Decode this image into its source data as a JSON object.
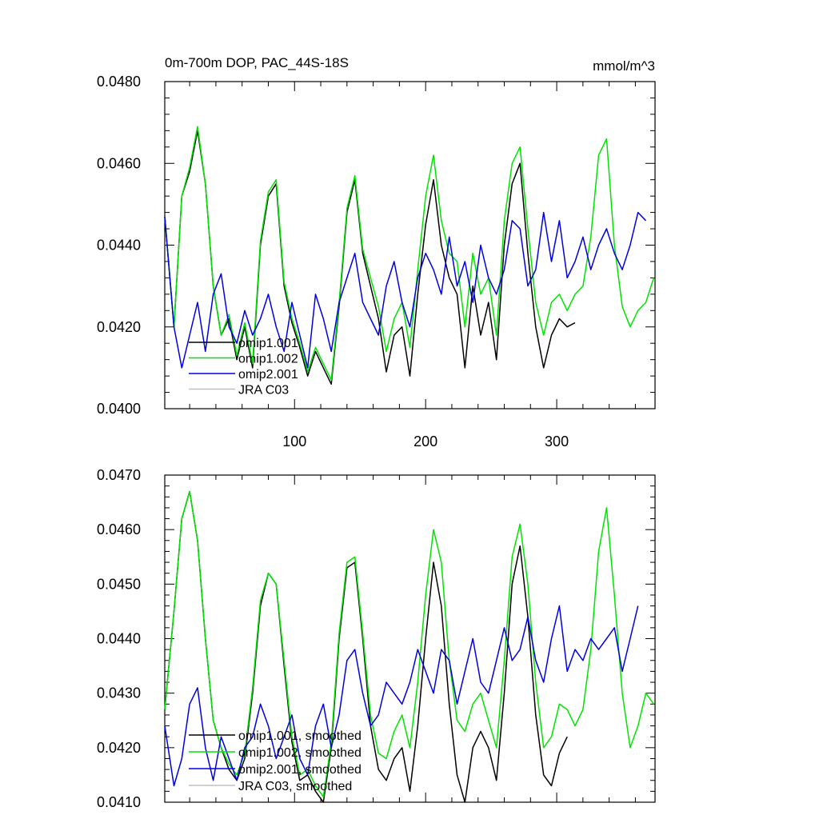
{
  "chart_data": [
    {
      "type": "line",
      "title_left": "0m-700m DOP, PAC_44S-18S",
      "title_right": "mmol/m^3",
      "ylim": [
        0.04,
        0.048
      ],
      "xlim": [
        1,
        375
      ],
      "yticks": [
        0.04,
        0.042,
        0.044,
        0.046,
        0.048
      ],
      "ytick_labels": [
        "0.0400",
        "0.0420",
        "0.0440",
        "0.0460",
        "0.0480"
      ],
      "xticks": [
        100,
        200,
        300
      ],
      "xtick_labels": [
        "100",
        "200",
        "300"
      ],
      "legend_position": "bottom-left",
      "series": [
        {
          "name": "omip1.001",
          "color": "#000000",
          "x": [
            1,
            8,
            14,
            20,
            26,
            32,
            38,
            44,
            50,
            56,
            62,
            68,
            74,
            80,
            86,
            92,
            98,
            104,
            110,
            116,
            122,
            128,
            134,
            140,
            146,
            152,
            158,
            164,
            170,
            176,
            182,
            188,
            194,
            200,
            206,
            212,
            218,
            224,
            230,
            236,
            242,
            248,
            254,
            260,
            266,
            272,
            278,
            284,
            290,
            296,
            302,
            308,
            314
          ],
          "y": [
            0.0447,
            0.042,
            0.0452,
            0.0458,
            0.0468,
            0.0455,
            0.043,
            0.0418,
            0.0422,
            0.0412,
            0.042,
            0.041,
            0.044,
            0.0452,
            0.0455,
            0.043,
            0.0421,
            0.0415,
            0.0408,
            0.0414,
            0.041,
            0.0406,
            0.0425,
            0.0448,
            0.0456,
            0.0438,
            0.043,
            0.0422,
            0.0409,
            0.0418,
            0.042,
            0.0408,
            0.0428,
            0.0445,
            0.0456,
            0.044,
            0.0432,
            0.0428,
            0.041,
            0.043,
            0.0418,
            0.0426,
            0.0412,
            0.044,
            0.0455,
            0.046,
            0.0438,
            0.042,
            0.041,
            0.0418,
            0.0422,
            0.042,
            0.0421
          ]
        },
        {
          "name": "omip1.002",
          "color": "#00e400",
          "x": [
            1,
            8,
            14,
            20,
            26,
            32,
            38,
            44,
            50,
            56,
            62,
            68,
            74,
            80,
            86,
            92,
            98,
            104,
            110,
            116,
            122,
            128,
            134,
            140,
            146,
            152,
            158,
            164,
            170,
            176,
            182,
            188,
            194,
            200,
            206,
            212,
            218,
            224,
            230,
            236,
            242,
            248,
            254,
            260,
            266,
            272,
            278,
            284,
            290,
            296,
            302,
            308,
            314,
            320,
            326,
            332,
            338,
            344,
            350,
            356,
            362,
            368,
            374
          ],
          "y": [
            0.0447,
            0.042,
            0.0452,
            0.0459,
            0.0469,
            0.0455,
            0.043,
            0.0418,
            0.0423,
            0.0413,
            0.0421,
            0.0411,
            0.0441,
            0.0453,
            0.0456,
            0.0431,
            0.0422,
            0.0416,
            0.0409,
            0.0415,
            0.0411,
            0.0407,
            0.0426,
            0.0449,
            0.0457,
            0.0439,
            0.0432,
            0.0425,
            0.0414,
            0.0422,
            0.0426,
            0.0415,
            0.0434,
            0.0452,
            0.0462,
            0.0446,
            0.0438,
            0.0436,
            0.042,
            0.0438,
            0.0428,
            0.0432,
            0.0418,
            0.0446,
            0.046,
            0.0464,
            0.0444,
            0.0426,
            0.0418,
            0.0426,
            0.0428,
            0.0424,
            0.0428,
            0.043,
            0.0442,
            0.0462,
            0.0466,
            0.044,
            0.0425,
            0.042,
            0.0424,
            0.0426,
            0.0432
          ]
        },
        {
          "name": "omip2.001",
          "color": "#0000e0",
          "x": [
            1,
            8,
            14,
            20,
            26,
            32,
            38,
            44,
            50,
            56,
            62,
            68,
            74,
            80,
            86,
            92,
            98,
            104,
            110,
            116,
            122,
            128,
            134,
            140,
            146,
            152,
            158,
            164,
            170,
            176,
            182,
            188,
            194,
            200,
            206,
            212,
            218,
            224,
            230,
            236,
            242,
            248,
            254,
            260,
            266,
            272,
            278,
            284,
            290,
            296,
            302,
            308,
            314,
            320,
            326,
            332,
            338,
            344,
            350,
            356,
            362,
            368
          ],
          "y": [
            0.0447,
            0.042,
            0.041,
            0.0418,
            0.0426,
            0.0414,
            0.0428,
            0.0433,
            0.042,
            0.0416,
            0.0424,
            0.0418,
            0.0422,
            0.0428,
            0.042,
            0.0414,
            0.0426,
            0.0418,
            0.041,
            0.0428,
            0.0422,
            0.0414,
            0.0426,
            0.0432,
            0.0438,
            0.0426,
            0.0422,
            0.0418,
            0.043,
            0.0436,
            0.0426,
            0.042,
            0.0432,
            0.0438,
            0.0434,
            0.0428,
            0.0442,
            0.043,
            0.0436,
            0.0426,
            0.044,
            0.0432,
            0.0428,
            0.0434,
            0.0446,
            0.0444,
            0.043,
            0.0434,
            0.0448,
            0.0436,
            0.0446,
            0.0432,
            0.0436,
            0.0442,
            0.0434,
            0.044,
            0.0444,
            0.0438,
            0.0434,
            0.044,
            0.0448,
            0.0446
          ]
        },
        {
          "name": "JRA C03",
          "color": "#c0c0c0",
          "x": [],
          "y": []
        }
      ]
    },
    {
      "type": "line",
      "ylim": [
        0.041,
        0.047
      ],
      "xlim": [
        1,
        375
      ],
      "yticks": [
        0.041,
        0.042,
        0.043,
        0.044,
        0.045,
        0.046,
        0.047
      ],
      "ytick_labels": [
        "0.0410",
        "0.0420",
        "0.0430",
        "0.0440",
        "0.0450",
        "0.0460",
        "0.0470"
      ],
      "legend_position": "bottom-left",
      "series": [
        {
          "name": "omip1.001, smoothed",
          "color": "#000000",
          "x": [
            1,
            8,
            14,
            20,
            26,
            32,
            38,
            44,
            50,
            56,
            62,
            68,
            74,
            80,
            86,
            92,
            98,
            104,
            110,
            116,
            122,
            128,
            134,
            140,
            146,
            152,
            158,
            164,
            170,
            176,
            182,
            188,
            194,
            200,
            206,
            212,
            218,
            224,
            230,
            236,
            242,
            248,
            254,
            260,
            266,
            272,
            278,
            284,
            290,
            296,
            302,
            308
          ],
          "y": [
            0.0427,
            0.0445,
            0.0462,
            0.0467,
            0.0458,
            0.044,
            0.0425,
            0.042,
            0.0416,
            0.0414,
            0.0418,
            0.043,
            0.0446,
            0.0452,
            0.045,
            0.0435,
            0.0421,
            0.0414,
            0.0415,
            0.0412,
            0.041,
            0.042,
            0.044,
            0.0453,
            0.0454,
            0.044,
            0.0424,
            0.0416,
            0.0414,
            0.0418,
            0.042,
            0.0412,
            0.0424,
            0.044,
            0.0454,
            0.0446,
            0.0428,
            0.0415,
            0.041,
            0.042,
            0.0423,
            0.042,
            0.0414,
            0.043,
            0.045,
            0.0457,
            0.0444,
            0.0426,
            0.0415,
            0.0413,
            0.0419,
            0.0422
          ]
        },
        {
          "name": "omip1.002, smoothed",
          "color": "#00e400",
          "x": [
            1,
            8,
            14,
            20,
            26,
            32,
            38,
            44,
            50,
            56,
            62,
            68,
            74,
            80,
            86,
            92,
            98,
            104,
            110,
            116,
            122,
            128,
            134,
            140,
            146,
            152,
            158,
            164,
            170,
            176,
            182,
            188,
            194,
            200,
            206,
            212,
            218,
            224,
            230,
            236,
            242,
            248,
            254,
            260,
            266,
            272,
            278,
            284,
            290,
            296,
            302,
            308,
            314,
            320,
            326,
            332,
            338,
            344,
            350,
            356,
            362,
            368,
            374
          ],
          "y": [
            0.0427,
            0.0445,
            0.0462,
            0.0467,
            0.0458,
            0.044,
            0.0425,
            0.042,
            0.0417,
            0.0415,
            0.0419,
            0.0431,
            0.0447,
            0.0452,
            0.045,
            0.0436,
            0.0422,
            0.0415,
            0.0416,
            0.0413,
            0.0411,
            0.0421,
            0.0441,
            0.0454,
            0.0455,
            0.0441,
            0.0426,
            0.0419,
            0.0418,
            0.0423,
            0.0426,
            0.042,
            0.0432,
            0.0448,
            0.046,
            0.0454,
            0.0436,
            0.0425,
            0.0423,
            0.0428,
            0.043,
            0.0425,
            0.042,
            0.0436,
            0.0455,
            0.0461,
            0.045,
            0.0432,
            0.042,
            0.0422,
            0.0428,
            0.0427,
            0.0424,
            0.0427,
            0.0438,
            0.0456,
            0.0464,
            0.0448,
            0.043,
            0.042,
            0.0424,
            0.043,
            0.0428
          ]
        },
        {
          "name": "omip2.001, smoothed",
          "color": "#0000e0",
          "x": [
            1,
            8,
            14,
            20,
            26,
            32,
            38,
            44,
            50,
            56,
            62,
            68,
            74,
            80,
            86,
            92,
            98,
            104,
            110,
            116,
            122,
            128,
            134,
            140,
            146,
            152,
            158,
            164,
            170,
            176,
            182,
            188,
            194,
            200,
            206,
            212,
            218,
            224,
            230,
            236,
            242,
            248,
            254,
            260,
            266,
            272,
            278,
            284,
            290,
            296,
            302,
            308,
            314,
            320,
            326,
            332,
            338,
            344,
            350,
            356,
            362
          ],
          "y": [
            0.0424,
            0.0413,
            0.0418,
            0.0428,
            0.0431,
            0.042,
            0.0414,
            0.0422,
            0.0418,
            0.0414,
            0.042,
            0.0422,
            0.0428,
            0.0424,
            0.0418,
            0.0422,
            0.0426,
            0.0418,
            0.0415,
            0.0424,
            0.0428,
            0.042,
            0.0426,
            0.0436,
            0.0438,
            0.043,
            0.0424,
            0.0426,
            0.0432,
            0.043,
            0.0428,
            0.0432,
            0.0438,
            0.0434,
            0.043,
            0.0438,
            0.0436,
            0.0428,
            0.0434,
            0.044,
            0.0432,
            0.043,
            0.0436,
            0.0442,
            0.0436,
            0.0438,
            0.0444,
            0.0436,
            0.0432,
            0.044,
            0.0446,
            0.0434,
            0.0438,
            0.0436,
            0.044,
            0.0438,
            0.044,
            0.0442,
            0.0434,
            0.044,
            0.0446
          ]
        },
        {
          "name": "JRA C03, smoothed",
          "color": "#c0c0c0",
          "x": [],
          "y": []
        }
      ]
    }
  ]
}
